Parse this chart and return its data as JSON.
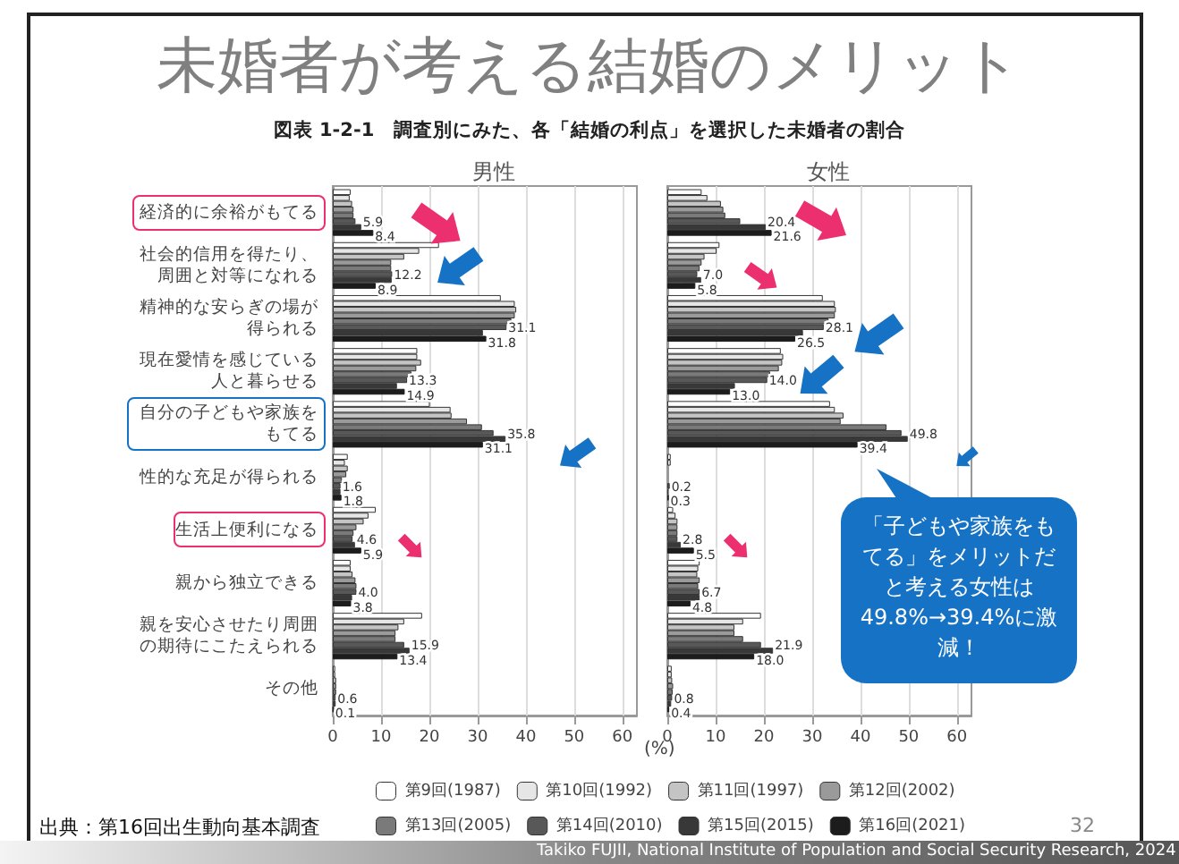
{
  "chart_data": [
    {
      "type": "other",
      "title": "未婚者が考える結婚のメリット",
      "subtitle": "図表 1-2-1　調査別にみた、各「結婚の利点」を選択した未婚者の割合",
      "annotations": [
        "出典：第16回出生動向基本調査",
        "32",
        "Takiko FUJII, National Institute of Population and Social Security Research, 2024"
      ]
    },
    {
      "type": "bar",
      "orientation": "horizontal",
      "title": "男性",
      "xlabel": "(%)",
      "categories": [
        "経済的に余裕がもてる",
        "社会的信用を得たり、周囲と対等になれる",
        "精神的な安らぎの場が得られる",
        "現在愛情を感じている人と暮らせる",
        "自分の子どもや家族をもてる",
        "性的な充足が得られる",
        "生活上便利になる",
        "親から独立できる",
        "親を安心させたり周囲の期待にこたえられる",
        "その他"
      ],
      "xlim": [
        0,
        63
      ],
      "xticks": [
        0,
        10,
        20,
        30,
        40,
        50,
        60
      ],
      "grid": "x",
      "legend": "bottom",
      "series": [
        {
          "name": "第9回(1987)",
          "color": "#ffffff",
          "values": [
            3.7,
            22.0,
            34.8,
            17.5,
            20.1,
            3.1,
            8.9,
            3.7,
            18.5,
            0.5
          ]
        },
        {
          "name": "第10回(1992)",
          "color": "#e6e6e6",
          "values": [
            3.5,
            17.9,
            37.7,
            17.5,
            24.4,
            2.5,
            7.4,
            3.7,
            14.8,
            0.5
          ]
        },
        {
          "name": "第11回(1997)",
          "color": "#c4c4c4",
          "values": [
            4.0,
            14.8,
            38.0,
            18.3,
            24.6,
            3.1,
            6.4,
            4.1,
            13.6,
            0.7
          ]
        },
        {
          "name": "第12回(2002)",
          "color": "#9a9a9a",
          "values": [
            4.3,
            12.1,
            37.7,
            17.3,
            27.8,
            2.8,
            4.9,
            4.7,
            13.0,
            0.7
          ]
        },
        {
          "name": "第13回(2005)",
          "color": "#7a7a7a",
          "values": [
            4.3,
            12.1,
            37.0,
            16.3,
            30.9,
            1.9,
            4.3,
            4.9,
            13.0,
            0.7
          ]
        },
        {
          "name": "第14回(2010)",
          "color": "#585858",
          "values": [
            4.7,
            12.3,
            36.0,
            15.4,
            33.3,
            1.6,
            4.1,
            4.9,
            14.8,
            0.6
          ]
        },
        {
          "name": "第15回(2015)",
          "color": "#383838",
          "values": [
            5.9,
            12.2,
            31.1,
            13.3,
            35.8,
            1.6,
            4.6,
            4.0,
            15.9,
            0.6
          ],
          "value_labels": [
            "5.9",
            "12.2",
            "31.1",
            "13.3",
            "35.8",
            "1.6",
            "4.6",
            "4.0",
            "15.9",
            "0.6"
          ]
        },
        {
          "name": "第16回(2021)",
          "color": "#1c1c1c",
          "values": [
            8.4,
            8.9,
            31.8,
            14.9,
            31.1,
            1.8,
            5.9,
            3.8,
            13.4,
            0.1
          ],
          "value_labels": [
            "8.4",
            "8.9",
            "31.8",
            "14.9",
            "31.1",
            "1.8",
            "5.9",
            "3.8",
            "13.4",
            "0.1"
          ]
        }
      ]
    },
    {
      "type": "bar",
      "orientation": "horizontal",
      "title": "女性",
      "categories": [
        "経済的に余裕がもてる",
        "社会的信用を得たり、周囲と対等になれる",
        "精神的な安らぎの場が得られる",
        "現在愛情を感じている人と暮らせる",
        "自分の子どもや家族をもてる",
        "性的な充足が得られる",
        "生活上便利になる",
        "親から独立できる",
        "親を安心させたり周囲の期待にこたえられる",
        "その他"
      ],
      "xlim": [
        0,
        63
      ],
      "xticks": [
        0,
        10,
        20,
        30,
        40,
        50,
        60
      ],
      "grid": "x",
      "tick_labels": "x",
      "annotations": [
        "「子どもや家族をもてる」をメリットだと考える女性は49.8%→39.4%に激減！"
      ],
      "series": [
        {
          "color": "#ffffff",
          "values": [
            7.1,
            10.8,
            32.2,
            23.5,
            33.7,
            0.7,
            1.2,
            6.7,
            19.4,
            0.9
          ]
        },
        {
          "color": "#e6e6e6",
          "values": [
            8.3,
            10.2,
            34.7,
            24.0,
            34.7,
            0.7,
            1.7,
            6.4,
            15.7,
            0.9
          ]
        },
        {
          "color": "#c4c4c4",
          "values": [
            11.1,
            7.7,
            34.9,
            23.8,
            36.5,
            null,
            2.1,
            6.2,
            13.9,
            1.0
          ]
        },
        {
          "color": "#9a9a9a",
          "values": [
            11.6,
            7.1,
            34.7,
            23.1,
            35.9,
            null,
            2.1,
            6.7,
            13.9,
            1.2
          ]
        },
        {
          "color": "#7a7a7a",
          "values": [
            12.0,
            6.7,
            33.4,
            21.3,
            45.4,
            null,
            2.1,
            6.4,
            15.7,
            1.1
          ]
        },
        {
          "color": "#585858",
          "values": [
            15.1,
            6.2,
            32.4,
            20.7,
            48.5,
            0.5,
            2.1,
            6.7,
            19.4,
            1.0
          ]
        },
        {
          "color": "#383838",
          "values": [
            20.4,
            7.0,
            28.1,
            14.0,
            49.8,
            0.2,
            2.8,
            6.7,
            21.9,
            0.8
          ],
          "value_labels": [
            "20.4",
            "7.0",
            "28.1",
            "14.0",
            "49.8",
            "0.2",
            "2.8",
            "6.7",
            "21.9",
            "0.8"
          ]
        },
        {
          "color": "#1c1c1c",
          "values": [
            21.6,
            5.8,
            26.5,
            13.0,
            39.4,
            0.3,
            5.5,
            4.8,
            18.0,
            0.4
          ],
          "value_labels": [
            "21.6",
            "5.8",
            "26.5",
            "13.0",
            "39.4",
            "0.3",
            "5.5",
            "4.8",
            "18.0",
            "0.4"
          ]
        }
      ]
    }
  ]
}
